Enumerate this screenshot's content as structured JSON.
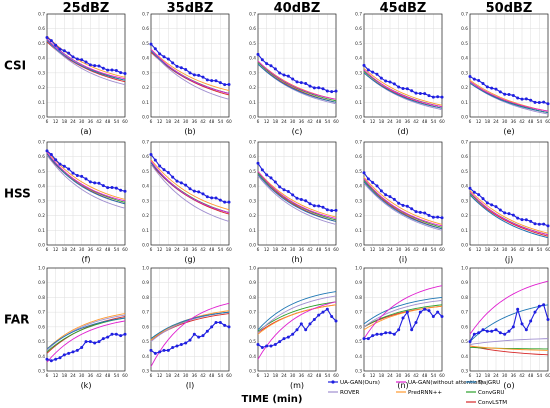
{
  "chart_data": {
    "type": "line",
    "xlabel": "TIME (min)",
    "columns": [
      "25dBZ",
      "35dBZ",
      "40dBZ",
      "45dBZ",
      "50dBZ"
    ],
    "rows": [
      "CSI",
      "HSS",
      "FAR"
    ],
    "x": [
      6,
      9,
      12,
      15,
      18,
      21,
      24,
      27,
      30,
      33,
      36,
      39,
      42,
      45,
      48,
      51,
      54,
      57,
      60
    ],
    "x_ticks": [
      6,
      12,
      18,
      24,
      30,
      36,
      42,
      48,
      54,
      60
    ],
    "ylim": [
      0.0,
      0.7
    ],
    "y_ticks": {
      "CSI": [
        "0.0",
        "0.1",
        "0.2",
        "0.3",
        "0.4",
        "0.5",
        "0.6",
        "0.7"
      ],
      "HSS": [
        "0.0",
        "0.1",
        "0.2",
        "0.3",
        "0.4",
        "0.5",
        "0.6",
        "0.7"
      ],
      "FAR": [
        "0.3",
        "0.4",
        "0.5",
        "0.6",
        "0.7",
        "0.8",
        "0.9",
        "1.0"
      ]
    },
    "subplot_labels": [
      [
        "(a)",
        "(b)",
        "(c)",
        "(d)",
        "(e)"
      ],
      [
        "(f)",
        "(g)",
        "(h)",
        "(i)",
        "(j)"
      ],
      [
        "(k)",
        "(l)",
        "(m)",
        "(n)",
        "(o)"
      ]
    ],
    "series": [
      {
        "name": "UA-GAN(Ours)",
        "color": "#1f1fe0",
        "marker": true
      },
      {
        "name": "UA-GAN(without attention)",
        "color": "#e020d0",
        "marker": false
      },
      {
        "name": "TrajGRU",
        "color": "#1f77b4",
        "marker": false
      },
      {
        "name": "ROVER",
        "color": "#a08fd0",
        "marker": false
      },
      {
        "name": "PredRNN++",
        "color": "#ff9a2e",
        "marker": false
      },
      {
        "name": "ConvGRU",
        "color": "#2ca02c",
        "marker": false
      },
      {
        "name": "ConvLSTM",
        "color": "#d62728",
        "marker": false
      }
    ],
    "panels": [
      [
        {
          "start": [
            0.54,
            0.53,
            0.52,
            0.52,
            0.55,
            0.53,
            0.51
          ],
          "end": [
            0.3,
            0.26,
            0.25,
            0.22,
            0.27,
            0.25,
            0.24
          ],
          "k": 0.18
        },
        {
          "start": [
            0.49,
            0.46,
            0.45,
            0.45,
            0.46,
            0.45,
            0.44
          ],
          "end": [
            0.22,
            0.16,
            0.16,
            0.12,
            0.18,
            0.16,
            0.15
          ],
          "k": 0.2
        },
        {
          "start": [
            0.42,
            0.38,
            0.36,
            0.36,
            0.38,
            0.37,
            0.36
          ],
          "end": [
            0.17,
            0.12,
            0.1,
            0.09,
            0.12,
            0.11,
            0.1
          ],
          "k": 0.18
        },
        {
          "start": [
            0.35,
            0.32,
            0.3,
            0.3,
            0.33,
            0.31,
            0.3
          ],
          "end": [
            0.13,
            0.07,
            0.06,
            0.05,
            0.08,
            0.07,
            0.06
          ],
          "k": 0.19
        },
        {
          "start": [
            0.28,
            0.24,
            0.23,
            0.23,
            0.25,
            0.24,
            0.23
          ],
          "end": [
            0.09,
            0.04,
            0.03,
            0.02,
            0.04,
            0.03,
            0.03
          ],
          "k": 0.22
        }
      ],
      [
        {
          "start": [
            0.64,
            0.63,
            0.62,
            0.61,
            0.64,
            0.62,
            0.61
          ],
          "end": [
            0.37,
            0.3,
            0.28,
            0.25,
            0.31,
            0.29,
            0.28
          ],
          "k": 0.16
        },
        {
          "start": [
            0.61,
            0.57,
            0.56,
            0.55,
            0.58,
            0.56,
            0.55
          ],
          "end": [
            0.29,
            0.22,
            0.22,
            0.16,
            0.24,
            0.22,
            0.21
          ],
          "k": 0.18
        },
        {
          "start": [
            0.55,
            0.5,
            0.48,
            0.47,
            0.5,
            0.49,
            0.48
          ],
          "end": [
            0.23,
            0.18,
            0.16,
            0.14,
            0.19,
            0.17,
            0.16
          ],
          "k": 0.17
        },
        {
          "start": [
            0.49,
            0.45,
            0.43,
            0.42,
            0.46,
            0.44,
            0.43
          ],
          "end": [
            0.18,
            0.13,
            0.11,
            0.1,
            0.14,
            0.12,
            0.11
          ],
          "k": 0.18
        },
        {
          "start": [
            0.39,
            0.36,
            0.34,
            0.34,
            0.37,
            0.35,
            0.34
          ],
          "end": [
            0.13,
            0.07,
            0.05,
            0.05,
            0.08,
            0.07,
            0.06
          ],
          "k": 0.2
        }
      ],
      [
        {
          "ours": [
            0.38,
            0.37,
            0.38,
            0.39,
            0.41,
            0.42,
            0.43,
            0.44,
            0.46,
            0.5,
            0.5,
            0.49,
            0.5,
            0.52,
            0.53,
            0.55,
            0.55,
            0.54,
            0.55
          ],
          "start": [
            0,
            0.36,
            0.45,
            0.44,
            0.45,
            0.43,
            0.42
          ],
          "end": [
            0,
            0.64,
            0.66,
            0.68,
            0.69,
            0.66,
            0.67
          ],
          "k": 0.13
        },
        {
          "ours": [
            0.44,
            0.42,
            0.43,
            0.44,
            0.44,
            0.46,
            0.47,
            0.48,
            0.49,
            0.51,
            0.55,
            0.53,
            0.54,
            0.57,
            0.6,
            0.63,
            0.63,
            0.61,
            0.6
          ],
          "start": [
            0,
            0.33,
            0.52,
            0.5,
            0.51,
            0.52,
            0.51
          ],
          "end": [
            0,
            0.76,
            0.7,
            0.7,
            0.71,
            0.7,
            0.69
          ],
          "k": 0.11
        },
        {
          "ours": [
            0.48,
            0.46,
            0.47,
            0.47,
            0.48,
            0.5,
            0.52,
            0.53,
            0.55,
            0.58,
            0.62,
            0.58,
            0.62,
            0.65,
            0.68,
            0.7,
            0.72,
            0.67,
            0.64
          ],
          "start": [
            0,
            0.38,
            0.58,
            0.56,
            0.55,
            0.57,
            0.56
          ],
          "end": [
            0,
            0.77,
            0.84,
            0.81,
            0.75,
            0.77,
            0.75
          ],
          "k": 0.12
        },
        {
          "ours": [
            0.52,
            0.52,
            0.54,
            0.55,
            0.55,
            0.56,
            0.56,
            0.55,
            0.58,
            0.66,
            0.7,
            0.58,
            0.63,
            0.7,
            0.72,
            0.71,
            0.67,
            0.7,
            0.67
          ],
          "start": [
            0,
            0.52,
            0.62,
            0.6,
            0.58,
            0.6,
            0.6
          ],
          "end": [
            0,
            0.88,
            0.8,
            0.78,
            0.74,
            0.75,
            0.74
          ],
          "k": 0.12
        },
        {
          "ours": [
            0.5,
            0.55,
            0.56,
            0.58,
            0.57,
            0.57,
            0.58,
            0.56,
            0.55,
            0.57,
            0.6,
            0.72,
            0.62,
            0.58,
            0.64,
            0.7,
            0.74,
            0.75,
            0.65
          ],
          "start": [
            0,
            0.55,
            0.5,
            0.48,
            0.47,
            0.46,
            0.47
          ],
          "end": [
            0,
            0.91,
            0.75,
            0.52,
            0.44,
            0.45,
            0.41
          ],
          "k": 0.15
        }
      ]
    ]
  }
}
